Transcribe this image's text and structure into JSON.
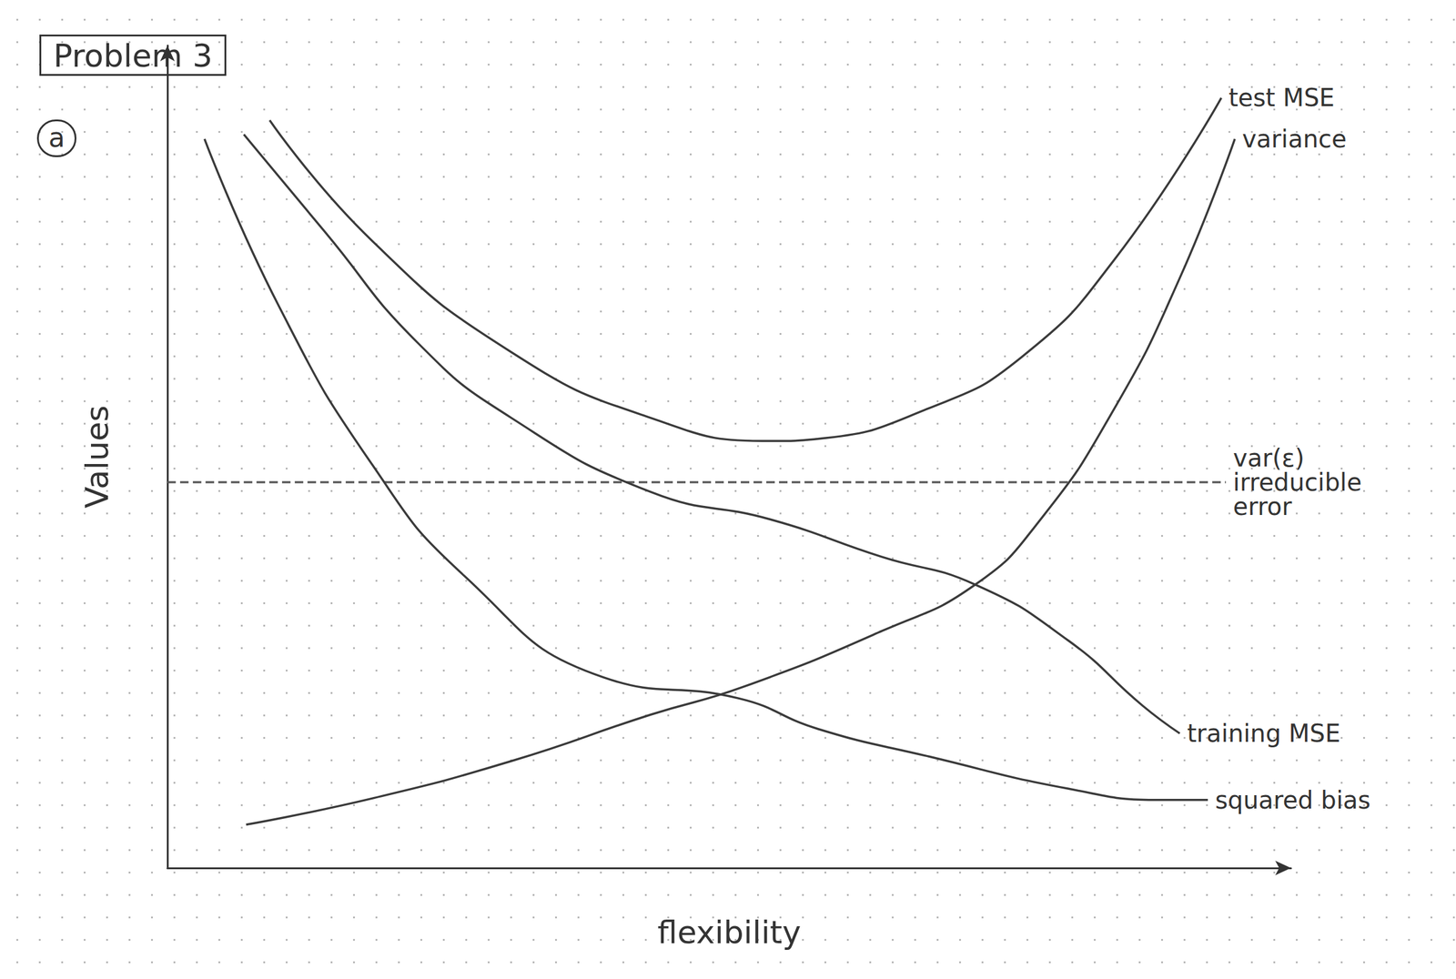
{
  "chart_data": {
    "type": "line",
    "title": "Problem 3",
    "annotations": [
      "a"
    ],
    "x_label": "flexibility",
    "y_label": "Values",
    "xlim": [
      0,
      100
    ],
    "ylim": [
      0,
      110
    ],
    "tick_labels": false,
    "grid": false,
    "series": [
      {
        "name": "test MSE",
        "color": "#3a3a3a",
        "line_style": "solid",
        "x": [
          9.1,
          18.2,
          30.6,
          43.0,
          53.7,
          57.9,
          67.8,
          76.0,
          84.3,
          93.8
        ],
        "values": [
          100,
          83.9,
          69.0,
          60.2,
          57.1,
          57.4,
          61.5,
          68.3,
          81.4,
          103
        ]
      },
      {
        "name": "variance",
        "color": "#3a3a3a",
        "line_style": "solid",
        "x": [
          7.0,
          18.2,
          30.6,
          43.0,
          51.2,
          63.6,
          71.9,
          77.7,
          84.3,
          90.1,
          95.0
        ],
        "values": [
          5.8,
          9.3,
          14.3,
          20.5,
          24.2,
          31.7,
          37.9,
          46.6,
          61.5,
          78.9,
          97.5
        ]
      },
      {
        "name": "var(ε) irreducible error",
        "color": "#5a5a5a",
        "line_style": "dashed",
        "x": [
          0,
          94.2
        ],
        "values": [
          51.6,
          51.6
        ]
      },
      {
        "name": "training MSE",
        "color": "#3a3a3a",
        "line_style": "solid",
        "x": [
          6.8,
          14.0,
          22.3,
          30.6,
          43.0,
          53.7,
          63.6,
          71.9,
          80.2,
          86.8,
          90.1
        ],
        "values": [
          98.1,
          85.1,
          70.2,
          60.2,
          50.3,
          46.6,
          41.6,
          37.9,
          30.4,
          21.7,
          18.0
        ]
      },
      {
        "name": "squared bias",
        "color": "#3a3a3a",
        "line_style": "solid",
        "x": [
          3.3,
          9.9,
          18.2,
          26.4,
          38.8,
          50.8,
          57.9,
          67.8,
          80.2,
          88.4,
          92.6
        ],
        "values": [
          97.5,
          75.2,
          54.0,
          39.1,
          25.5,
          22.7,
          18.6,
          14.9,
          10.6,
          9.1,
          9.1
        ]
      }
    ]
  }
}
